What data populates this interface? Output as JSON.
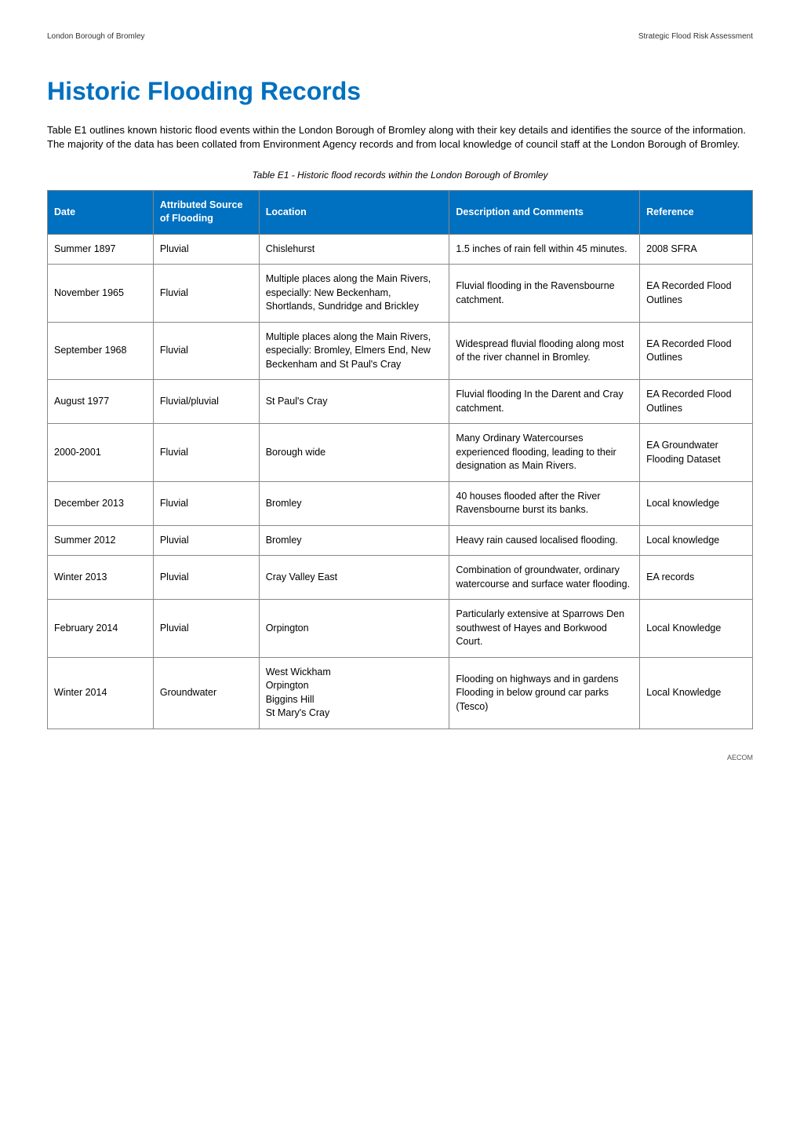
{
  "header": {
    "left": "London Borough of Bromley",
    "right": "Strategic Flood Risk Assessment"
  },
  "title": "Historic Flooding Records",
  "intro": "Table E1 outlines known historic flood events within the London Borough of Bromley along with their key details and identifies the source of the information.  The majority of the data has been collated from Environment Agency records and from local knowledge of council staff at the London Borough of Bromley.",
  "table": {
    "caption": "Table E1 - Historic flood records within the London Borough of Bromley",
    "header_bg": "#0070c0",
    "header_fg": "#ffffff",
    "columns": [
      "Date",
      "Attributed Source of Flooding",
      "Location",
      "Description and Comments",
      "Reference"
    ],
    "rows": [
      {
        "date": "Summer 1897",
        "attributed": "Pluvial",
        "location": "Chislehurst",
        "description": "1.5 inches of rain fell within 45 minutes.",
        "reference": "2008 SFRA"
      },
      {
        "date": "November 1965",
        "attributed": "Fluvial",
        "location": "Multiple places along the Main Rivers, especially: New Beckenham, Shortlands, Sundridge and Brickley",
        "description": "Fluvial flooding in the Ravensbourne catchment.",
        "reference": "EA Recorded Flood Outlines"
      },
      {
        "date": "September 1968",
        "attributed": "Fluvial",
        "location": "Multiple places along the Main Rivers, especially: Bromley, Elmers End, New Beckenham and St Paul's Cray",
        "description": "Widespread fluvial flooding along most of the river channel in Bromley.",
        "reference": "EA Recorded Flood Outlines"
      },
      {
        "date": "August 1977",
        "attributed": "Fluvial/pluvial",
        "location": "St Paul's Cray",
        "description": "Fluvial flooding In the Darent and Cray catchment.",
        "reference": "EA Recorded Flood Outlines"
      },
      {
        "date": "2000-2001",
        "attributed": "Fluvial",
        "location": "Borough wide",
        "description": "Many Ordinary Watercourses experienced flooding, leading to their designation as Main Rivers.",
        "reference": "EA Groundwater Flooding Dataset"
      },
      {
        "date": "December 2013",
        "attributed": "Fluvial",
        "location": "Bromley",
        "description": "40 houses flooded after the River Ravensbourne burst its banks.",
        "reference": "Local knowledge"
      },
      {
        "date": "Summer 2012",
        "attributed": "Pluvial",
        "location": "Bromley",
        "description": "Heavy rain caused localised flooding.",
        "reference": "Local knowledge"
      },
      {
        "date": "Winter 2013",
        "attributed": "Pluvial",
        "location": "Cray Valley East",
        "description": "Combination of groundwater, ordinary watercourse and surface water flooding.",
        "reference": "EA records"
      },
      {
        "date": "February 2014",
        "attributed": "Pluvial",
        "location": "Orpington",
        "description": "Particularly extensive at Sparrows Den southwest of Hayes and Borkwood Court.",
        "reference": "Local Knowledge"
      },
      {
        "date": "Winter 2014",
        "attributed": "Groundwater",
        "location": "West Wickham\nOrpington\nBiggins Hill\nSt Mary's Cray",
        "description": "Flooding on highways and in gardens\nFlooding in below ground car parks (Tesco)",
        "reference": "Local Knowledge"
      }
    ]
  },
  "footer": "AECOM"
}
